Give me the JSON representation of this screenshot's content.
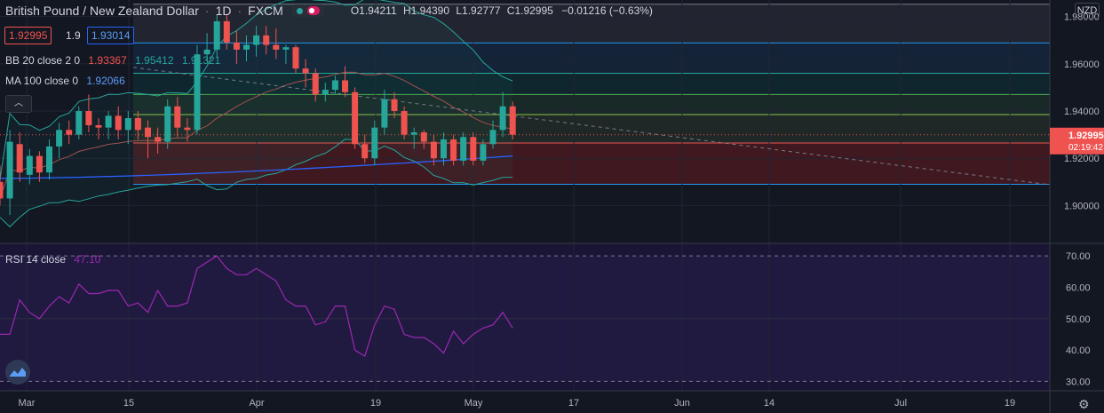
{
  "header": {
    "title": "British Pound / New Zealand Dollar",
    "interval": "1D",
    "exchange": "FXCM",
    "open": "O1.94211",
    "high": "H1.94390",
    "low": "L1.92777",
    "close": "C1.92995",
    "change": "−0.01216 (−0.63%)"
  },
  "trade": {
    "bid": "1.92995",
    "spread": "1.9",
    "ask": "1.93014"
  },
  "indicators": {
    "bb": {
      "label": "BB 20 close 2 0",
      "basis": "1.93367",
      "upper": "1.95412",
      "lower": "1.91321"
    },
    "ma": {
      "label": "MA 100 close 0",
      "value": "1.92066"
    },
    "rsi": {
      "label": "RSI 14 close",
      "value": "47.10"
    }
  },
  "currency": "NZD",
  "last_price": {
    "value": "1.92995",
    "countdown": "02:19:42"
  },
  "colors": {
    "up": "#26a69a",
    "down": "#ef5350",
    "bb": "#26a69a",
    "bb_basis": "#ef5350",
    "ma": "#2962ff",
    "rsi": "#9c27b0",
    "background": "#131722"
  },
  "icons": [
    "collapse-icon",
    "tradingview-logo-icon",
    "settings-gear-icon"
  ],
  "chart_data": {
    "type": "candlestick",
    "y_ticks": [
      "1.90000",
      "1.92000",
      "1.94000",
      "1.96000",
      "1.98000"
    ],
    "ylim": [
      1.884,
      1.987
    ],
    "x_ticks": [
      "Mar",
      "15",
      "Apr",
      "19",
      "May",
      "17",
      "Jun",
      "14",
      "Jul",
      "19"
    ],
    "ohlc": [
      [
        1.91,
        1.917,
        1.9,
        1.903
      ],
      [
        1.903,
        1.932,
        1.896,
        1.927
      ],
      [
        1.926,
        1.931,
        1.91,
        1.914
      ],
      [
        1.913,
        1.924,
        1.909,
        1.921
      ],
      [
        1.921,
        1.923,
        1.91,
        1.914
      ],
      [
        1.914,
        1.928,
        1.911,
        1.925
      ],
      [
        1.925,
        1.935,
        1.92,
        1.932
      ],
      [
        1.932,
        1.936,
        1.926,
        1.93
      ],
      [
        1.93,
        1.942,
        1.928,
        1.94
      ],
      [
        1.94,
        1.947,
        1.931,
        1.934
      ],
      [
        1.934,
        1.937,
        1.928,
        1.933
      ],
      [
        1.933,
        1.94,
        1.928,
        1.938
      ],
      [
        1.938,
        1.942,
        1.928,
        1.932
      ],
      [
        1.932,
        1.94,
        1.926,
        1.937
      ],
      [
        1.937,
        1.94,
        1.928,
        1.932
      ],
      [
        1.933,
        1.936,
        1.92,
        1.929
      ],
      [
        1.929,
        1.933,
        1.922,
        1.927
      ],
      [
        1.927,
        1.945,
        1.924,
        1.942
      ],
      [
        1.942,
        1.946,
        1.929,
        1.933
      ],
      [
        1.933,
        1.937,
        1.927,
        1.932
      ],
      [
        1.932,
        1.968,
        1.93,
        1.964
      ],
      [
        1.964,
        1.973,
        1.961,
        1.966
      ],
      [
        1.966,
        1.981,
        1.963,
        1.978
      ],
      [
        1.978,
        1.981,
        1.966,
        1.969
      ],
      [
        1.969,
        1.974,
        1.96,
        1.966
      ],
      [
        1.966,
        1.972,
        1.961,
        1.968
      ],
      [
        1.968,
        1.976,
        1.963,
        1.972
      ],
      [
        1.972,
        1.976,
        1.964,
        1.968
      ],
      [
        1.968,
        1.975,
        1.962,
        1.966
      ],
      [
        1.966,
        1.968,
        1.96,
        1.967
      ],
      [
        1.967,
        1.968,
        1.956,
        1.958
      ],
      [
        1.958,
        1.962,
        1.95,
        1.956
      ],
      [
        1.956,
        1.958,
        1.944,
        1.947
      ],
      [
        1.947,
        1.952,
        1.944,
        1.949
      ],
      [
        1.949,
        1.955,
        1.947,
        1.953
      ],
      [
        1.953,
        1.959,
        1.946,
        1.948
      ],
      [
        1.948,
        1.95,
        1.924,
        1.926
      ],
      [
        1.926,
        1.93,
        1.918,
        1.92
      ],
      [
        1.92,
        1.936,
        1.917,
        1.933
      ],
      [
        1.933,
        1.949,
        1.93,
        1.945
      ],
      [
        1.945,
        1.948,
        1.937,
        1.94
      ],
      [
        1.94,
        1.942,
        1.928,
        1.93
      ],
      [
        1.93,
        1.933,
        1.924,
        1.931
      ],
      [
        1.931,
        1.932,
        1.924,
        1.927
      ],
      [
        1.927,
        1.93,
        1.917,
        1.92
      ],
      [
        1.92,
        1.931,
        1.917,
        1.928
      ],
      [
        1.928,
        1.93,
        1.917,
        1.919
      ],
      [
        1.919,
        1.931,
        1.917,
        1.929
      ],
      [
        1.929,
        1.931,
        1.917,
        1.919
      ],
      [
        1.919,
        1.928,
        1.917,
        1.926
      ],
      [
        1.926,
        1.936,
        1.924,
        1.932
      ],
      [
        1.932,
        1.948,
        1.929,
        1.942
      ],
      [
        1.942,
        1.944,
        1.928,
        1.93
      ]
    ],
    "rsi": [
      45,
      45,
      56,
      52,
      50,
      54,
      57,
      55,
      61,
      58,
      58,
      59,
      59,
      54,
      55,
      52,
      59,
      54,
      54,
      55,
      66,
      68,
      70,
      66,
      64,
      64,
      66,
      64,
      62,
      56,
      54,
      54,
      48,
      49,
      54,
      54,
      40,
      38,
      48,
      54,
      53,
      45,
      44,
      44,
      42,
      39,
      46,
      42,
      45,
      47,
      48,
      52,
      47
    ],
    "rsi_levels": [
      "30.00",
      "40.00",
      "50.00",
      "60.00",
      "70.00"
    ],
    "rsi_ylim": [
      27,
      74
    ]
  }
}
